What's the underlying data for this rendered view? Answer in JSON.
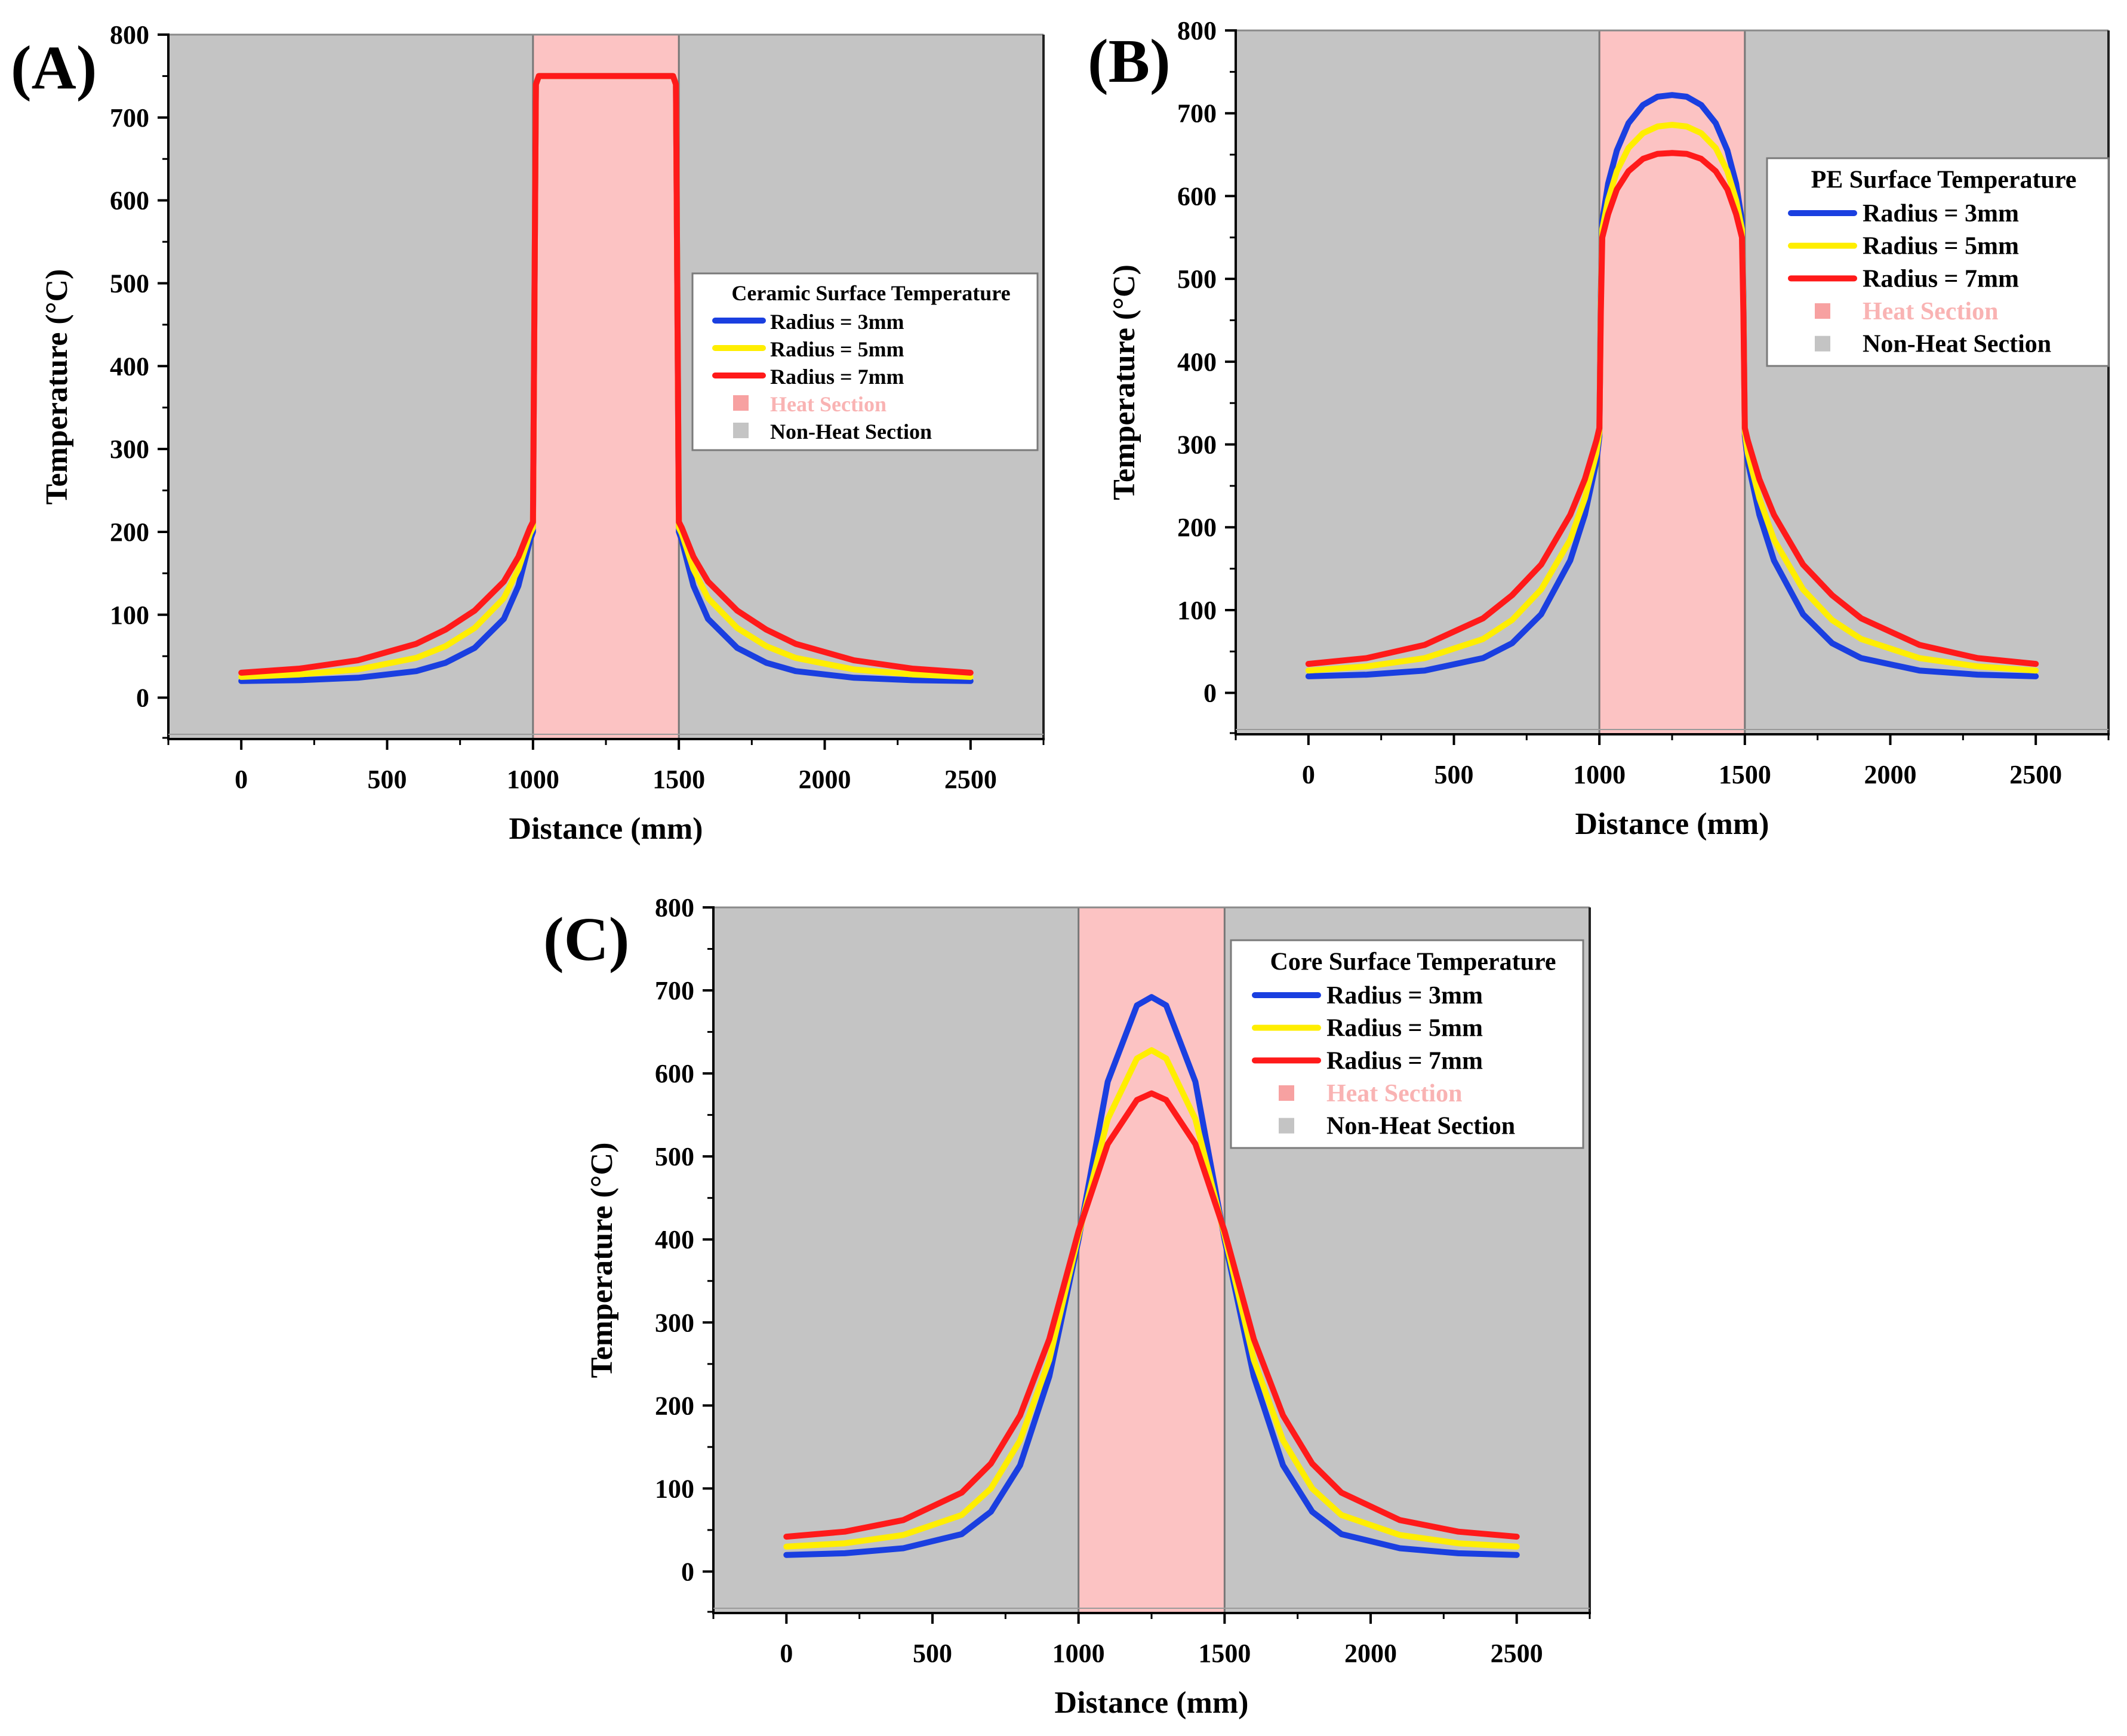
{
  "chart_data": [
    {
      "panel_label": "(A)",
      "type": "line",
      "title": "",
      "xlabel": "Distance (mm)",
      "ylabel": "Temperature (°C)",
      "xlim": [
        -250,
        2750
      ],
      "ylim": [
        -50,
        800
      ],
      "xticks": [
        "0",
        "500",
        "1000",
        "1500",
        "2000",
        "2500"
      ],
      "yticks": [
        "0",
        "100",
        "200",
        "300",
        "400",
        "500",
        "600",
        "700",
        "800"
      ],
      "regions": [
        {
          "name": "Non-Heat Section",
          "from": -250,
          "to": 1000,
          "color": "#c4c4c4"
        },
        {
          "name": "Heat Section",
          "from": 1000,
          "to": 1500,
          "color": "#fcc3c3"
        },
        {
          "name": "Non-Heat Section",
          "from": 1500,
          "to": 2750,
          "color": "#c4c4c4"
        }
      ],
      "legend": {
        "title": "Ceramic  Surface Temperature",
        "position": "right",
        "entries": [
          "Radius = 3mm",
          "Radius = 5mm",
          "Radius = 7mm",
          "Heat Section",
          "Non-Heat Section"
        ]
      },
      "series": [
        {
          "name": "Radius = 3mm",
          "color": "#1a3fe0",
          "x": [
            0,
            200,
            400,
            600,
            700,
            800,
            900,
            950,
            990,
            1000,
            1010,
            1020,
            1480,
            1490,
            1500,
            1510,
            1550,
            1600,
            1700,
            1800,
            1900,
            2100,
            2300,
            2500
          ],
          "y": [
            20,
            21,
            24,
            32,
            42,
            60,
            95,
            135,
            190,
            200,
            740,
            750,
            750,
            740,
            200,
            190,
            135,
            95,
            60,
            42,
            32,
            24,
            21,
            20
          ]
        },
        {
          "name": "Radius = 5mm",
          "color": "#ffee00",
          "x": [
            0,
            200,
            400,
            600,
            700,
            800,
            900,
            950,
            990,
            1000,
            1010,
            1020,
            1480,
            1490,
            1500,
            1510,
            1550,
            1600,
            1700,
            1800,
            1900,
            2100,
            2300,
            2500
          ],
          "y": [
            25,
            28,
            34,
            48,
            62,
            84,
            120,
            155,
            198,
            205,
            740,
            750,
            750,
            740,
            205,
            198,
            155,
            120,
            84,
            62,
            48,
            34,
            28,
            25
          ]
        },
        {
          "name": "Radius = 7mm",
          "color": "#ff1a1a",
          "x": [
            0,
            200,
            400,
            600,
            700,
            800,
            900,
            950,
            990,
            1000,
            1010,
            1020,
            1480,
            1490,
            1500,
            1510,
            1550,
            1600,
            1700,
            1800,
            1900,
            2100,
            2300,
            2500
          ],
          "y": [
            30,
            35,
            45,
            65,
            82,
            105,
            140,
            170,
            205,
            212,
            740,
            750,
            750,
            740,
            212,
            205,
            170,
            140,
            105,
            82,
            65,
            45,
            35,
            30
          ]
        }
      ]
    },
    {
      "panel_label": "(B)",
      "type": "line",
      "title": "",
      "xlabel": "Distance (mm)",
      "ylabel": "Temperature (°C)",
      "xlim": [
        -250,
        2750
      ],
      "ylim": [
        -50,
        800
      ],
      "xticks": [
        "0",
        "500",
        "1000",
        "1500",
        "2000",
        "2500"
      ],
      "yticks": [
        "0",
        "100",
        "200",
        "300",
        "400",
        "500",
        "600",
        "700",
        "800"
      ],
      "regions": [
        {
          "name": "Non-Heat Section",
          "from": -250,
          "to": 1000,
          "color": "#c4c4c4"
        },
        {
          "name": "Heat Section",
          "from": 1000,
          "to": 1500,
          "color": "#fcc3c3"
        },
        {
          "name": "Non-Heat Section",
          "from": 1500,
          "to": 2750,
          "color": "#c4c4c4"
        }
      ],
      "legend": {
        "title": "PE  Surface Temperature",
        "position": "top-right",
        "entries": [
          "Radius = 3mm",
          "Radius = 5mm",
          "Radius = 7mm",
          "Heat Section",
          "Non-Heat Section"
        ]
      },
      "series": [
        {
          "name": "Radius = 3mm",
          "color": "#1a3fe0",
          "x": [
            0,
            200,
            400,
            600,
            700,
            800,
            900,
            950,
            990,
            1000,
            1005,
            1010,
            1030,
            1060,
            1100,
            1150,
            1200,
            1250,
            1300,
            1350,
            1400,
            1440,
            1470,
            1490,
            1495,
            1500,
            1510,
            1550,
            1600,
            1700,
            1800,
            1900,
            2100,
            2300,
            2500
          ],
          "y": [
            20,
            22,
            27,
            42,
            60,
            95,
            160,
            215,
            280,
            310,
            480,
            570,
            615,
            655,
            688,
            710,
            720,
            722,
            720,
            710,
            688,
            655,
            615,
            570,
            480,
            310,
            280,
            215,
            160,
            95,
            60,
            42,
            27,
            22,
            20
          ]
        },
        {
          "name": "Radius = 5mm",
          "color": "#ffee00",
          "x": [
            0,
            200,
            400,
            600,
            700,
            800,
            900,
            950,
            990,
            1000,
            1005,
            1010,
            1030,
            1060,
            1100,
            1150,
            1200,
            1250,
            1300,
            1350,
            1400,
            1440,
            1470,
            1490,
            1495,
            1500,
            1510,
            1550,
            1600,
            1700,
            1800,
            1900,
            2100,
            2300,
            2500
          ],
          "y": [
            27,
            32,
            42,
            65,
            88,
            125,
            185,
            235,
            290,
            315,
            470,
            560,
            595,
            630,
            658,
            676,
            684,
            686,
            684,
            676,
            658,
            630,
            595,
            560,
            470,
            315,
            290,
            235,
            185,
            125,
            88,
            65,
            42,
            32,
            27
          ]
        },
        {
          "name": "Radius = 7mm",
          "color": "#ff1a1a",
          "x": [
            0,
            200,
            400,
            600,
            700,
            800,
            900,
            950,
            990,
            1000,
            1005,
            1010,
            1030,
            1060,
            1100,
            1150,
            1200,
            1250,
            1300,
            1350,
            1400,
            1440,
            1470,
            1490,
            1495,
            1500,
            1510,
            1550,
            1600,
            1700,
            1800,
            1900,
            2100,
            2300,
            2500
          ],
          "y": [
            35,
            42,
            58,
            90,
            118,
            155,
            215,
            258,
            305,
            320,
            460,
            550,
            578,
            608,
            630,
            645,
            651,
            652,
            651,
            645,
            630,
            608,
            578,
            550,
            460,
            320,
            305,
            258,
            215,
            155,
            118,
            90,
            58,
            42,
            35
          ]
        }
      ]
    },
    {
      "panel_label": "(C)",
      "type": "line",
      "title": "",
      "xlabel": "Distance (mm)",
      "ylabel": "Temperature (°C)",
      "xlim": [
        -250,
        2750
      ],
      "ylim": [
        -50,
        800
      ],
      "xticks": [
        "0",
        "500",
        "1000",
        "1500",
        "2000",
        "2500"
      ],
      "yticks": [
        "0",
        "100",
        "200",
        "300",
        "400",
        "500",
        "600",
        "700",
        "800"
      ],
      "regions": [
        {
          "name": "Non-Heat Section",
          "from": -250,
          "to": 1000,
          "color": "#c4c4c4"
        },
        {
          "name": "Heat Section",
          "from": 1000,
          "to": 1500,
          "color": "#fcc3c3"
        },
        {
          "name": "Non-Heat Section",
          "from": 1500,
          "to": 2750,
          "color": "#c4c4c4"
        }
      ],
      "legend": {
        "title": "Core Surface Temperature",
        "position": "top-right",
        "entries": [
          "Radius = 3mm",
          "Radius = 5mm",
          "Radius = 7mm",
          "Heat Section",
          "Non-Heat Section"
        ]
      },
      "series": [
        {
          "name": "Radius = 3mm",
          "color": "#1a3fe0",
          "x": [
            0,
            200,
            400,
            600,
            700,
            800,
            900,
            1000,
            1100,
            1200,
            1250,
            1300,
            1400,
            1500,
            1600,
            1700,
            1800,
            1900,
            2100,
            2300,
            2500
          ],
          "y": [
            20,
            22,
            28,
            45,
            72,
            128,
            235,
            400,
            590,
            682,
            692,
            682,
            590,
            400,
            235,
            128,
            72,
            45,
            28,
            22,
            20
          ]
        },
        {
          "name": "Radius = 5mm",
          "color": "#ffee00",
          "x": [
            0,
            200,
            400,
            600,
            700,
            800,
            900,
            1000,
            1100,
            1200,
            1250,
            1300,
            1400,
            1500,
            1600,
            1700,
            1800,
            1900,
            2100,
            2300,
            2500
          ],
          "y": [
            30,
            34,
            44,
            68,
            100,
            158,
            255,
            405,
            545,
            618,
            628,
            618,
            545,
            405,
            255,
            158,
            100,
            68,
            44,
            34,
            30
          ]
        },
        {
          "name": "Radius = 7mm",
          "color": "#ff1a1a",
          "x": [
            0,
            200,
            400,
            600,
            700,
            800,
            900,
            1000,
            1100,
            1200,
            1250,
            1300,
            1400,
            1500,
            1600,
            1700,
            1800,
            1900,
            2100,
            2300,
            2500
          ],
          "y": [
            42,
            48,
            62,
            95,
            130,
            188,
            280,
            410,
            515,
            568,
            576,
            568,
            515,
            410,
            280,
            188,
            130,
            95,
            62,
            48,
            42
          ]
        }
      ]
    }
  ]
}
